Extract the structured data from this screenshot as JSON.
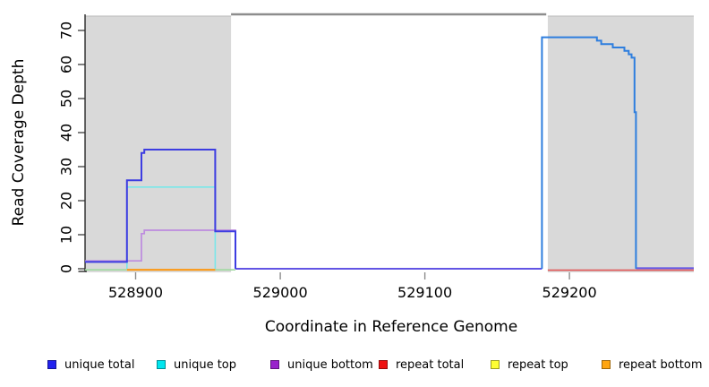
{
  "chart_data": {
    "type": "line",
    "title": "",
    "xlabel": "Coordinate in Reference Genome",
    "ylabel": "Read Coverage Depth",
    "xlim": [
      528865,
      529286
    ],
    "ylim": [
      0,
      75
    ],
    "grid": false,
    "legend_position": "bottom",
    "x_ticks": [
      "528900",
      "529000",
      "529100",
      "529200"
    ],
    "x_tick_values": [
      528900,
      529000,
      529100,
      529200
    ],
    "y_ticks": [
      "0",
      "10",
      "20",
      "30",
      "40",
      "50",
      "60",
      "70"
    ],
    "y_tick_values": [
      0,
      10,
      20,
      30,
      40,
      50,
      60,
      70
    ],
    "shaded_regions": [
      {
        "name": "left-masked-region",
        "x0": 528865,
        "x1": 528966,
        "color": "#d9d9d9",
        "edge": "#c2c2c2"
      },
      {
        "name": "right-masked-region",
        "x0": 529185,
        "x1": 529286,
        "color": "#d9d9d9",
        "edge": "#c2c2c2"
      }
    ],
    "top_marker": {
      "name": "unshaded-span-marker",
      "x0": 528966,
      "x1": 529184,
      "color": "#8d8d8d"
    },
    "legend": [
      {
        "label": "unique total",
        "color": "#2222ee"
      },
      {
        "label": "unique top",
        "color": "#00e5ee"
      },
      {
        "label": "unique bottom",
        "color": "#9922cc"
      },
      {
        "label": "repeat total",
        "color": "#ee1111"
      },
      {
        "label": "repeat top",
        "color": "#ffff33"
      },
      {
        "label": "repeat bottom",
        "color": "#ffa510"
      }
    ],
    "series": [
      {
        "name": "baseline-overlap-left",
        "color": "#9fd99f",
        "width": 1.6,
        "dy": 1.2,
        "points": [
          [
            528865,
            0
          ],
          [
            528894,
            0
          ]
        ]
      },
      {
        "name": "baseline-overlap-mid",
        "color": "#9fd99f",
        "width": 1.6,
        "dy": 1.2,
        "points": [
          [
            528955,
            0
          ],
          [
            528969,
            0
          ]
        ]
      },
      {
        "name": "repeat-bottom-line",
        "color": "#ff9100",
        "width": 1.8,
        "dy": 1.2,
        "points": [
          [
            528894,
            0
          ],
          [
            528955,
            0
          ]
        ]
      },
      {
        "name": "repeat-total-line",
        "color": "#e25555",
        "width": 1.6,
        "dy": 1.6,
        "points": [
          [
            529185,
            0
          ],
          [
            529286,
            0
          ]
        ]
      },
      {
        "name": "unique-blend-baseline-mid",
        "color": "#6254e4",
        "width": 2.0,
        "dy": 0,
        "points": [
          [
            528969,
            0
          ],
          [
            529181,
            0
          ]
        ]
      },
      {
        "name": "unique-blend-baseline-right",
        "color": "#6254e4",
        "width": 2.0,
        "dy": -0.6,
        "points": [
          [
            529246,
            0
          ],
          [
            529286,
            0
          ]
        ]
      },
      {
        "name": "unique-top-series-left",
        "color": "#79e7e9",
        "width": 1.6,
        "dy": 0,
        "points": [
          [
            528894,
            0
          ],
          [
            528894,
            24
          ],
          [
            528955,
            24
          ],
          [
            528955,
            0
          ]
        ]
      },
      {
        "name": "unique-bottom-series-left",
        "color": "#bd8bdf",
        "width": 1.7,
        "dy": -1.2,
        "points": [
          [
            528865,
            2
          ],
          [
            528904,
            2
          ],
          [
            528904,
            10
          ],
          [
            528906,
            10
          ],
          [
            528906,
            11
          ],
          [
            528969,
            11
          ],
          [
            528969,
            0
          ]
        ]
      },
      {
        "name": "unique-total-series-left",
        "color": "#3d3de1",
        "width": 2.0,
        "dy": 0,
        "points": [
          [
            528865,
            2
          ],
          [
            528894,
            2
          ],
          [
            528894,
            26
          ],
          [
            528904,
            26
          ],
          [
            528904,
            34
          ],
          [
            528906,
            34
          ],
          [
            528906,
            35
          ],
          [
            528955,
            35
          ],
          [
            528955,
            11
          ],
          [
            528969,
            11
          ],
          [
            528969,
            0
          ]
        ]
      },
      {
        "name": "unique-total-top-overlap-right",
        "color": "#2e7ede",
        "width": 2.0,
        "dy": 0,
        "points": [
          [
            529181,
            0
          ],
          [
            529181,
            68
          ],
          [
            529219,
            68
          ],
          [
            529219,
            67
          ],
          [
            529222,
            67
          ],
          [
            529222,
            66
          ],
          [
            529230,
            66
          ],
          [
            529230,
            65
          ],
          [
            529238,
            65
          ],
          [
            529238,
            64
          ],
          [
            529241,
            64
          ],
          [
            529241,
            63
          ],
          [
            529243,
            63
          ],
          [
            529243,
            62
          ],
          [
            529245,
            62
          ],
          [
            529245,
            46
          ],
          [
            529246,
            46
          ],
          [
            529246,
            0
          ]
        ]
      }
    ]
  }
}
